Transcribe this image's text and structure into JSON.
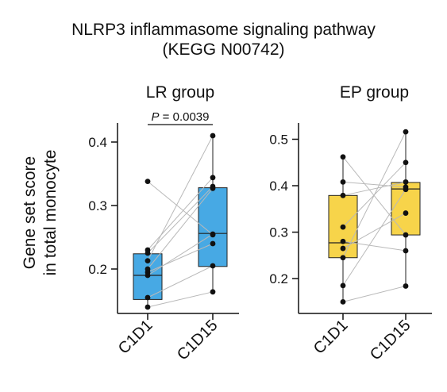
{
  "figure": {
    "title_line1": "NLRP3 inflammasome signaling pathway",
    "title_line2": "(KEGG N00742)",
    "ylabel_line1": "Gene set score",
    "ylabel_line2": "in total monocyte"
  },
  "chart_data": [
    {
      "type": "box",
      "title": "LR group",
      "categories": [
        "C1D1",
        "C1D15"
      ],
      "ylabel": "Gene set score in total monocyte",
      "ylim": [
        0.13,
        0.43
      ],
      "yticks": [
        0.2,
        0.3,
        0.4
      ],
      "ytick_labels": [
        "0.2",
        "0.3",
        "0.4"
      ],
      "box_color": "#47a9e4",
      "boxes": [
        {
          "category": "C1D1",
          "q1": 0.152,
          "median": 0.19,
          "q3": 0.224,
          "whisker_low": 0.14,
          "whisker_high": 0.233
        },
        {
          "category": "C1D15",
          "q1": 0.204,
          "median": 0.256,
          "q3": 0.328,
          "whisker_low": 0.164,
          "whisker_high": 0.41
        }
      ],
      "paired_points": [
        {
          "C1D1": 0.338,
          "C1D15": 0.254
        },
        {
          "C1D1": 0.23,
          "C1D15": 0.344
        },
        {
          "C1D1": 0.225,
          "C1D15": 0.33
        },
        {
          "C1D1": 0.213,
          "C1D15": 0.41
        },
        {
          "C1D1": 0.2,
          "C1D15": 0.327
        },
        {
          "C1D1": 0.195,
          "C1D15": 0.24
        },
        {
          "C1D1": 0.19,
          "C1D15": 0.255
        },
        {
          "C1D1": 0.155,
          "C1D15": 0.205
        },
        {
          "C1D1": 0.14,
          "C1D15": 0.164
        }
      ],
      "annotation": {
        "p_label": "P",
        "p_text": " = 0.0039"
      }
    },
    {
      "type": "box",
      "title": "EP group",
      "categories": [
        "C1D1",
        "C1D15"
      ],
      "ylim": [
        0.125,
        0.535
      ],
      "yticks": [
        0.2,
        0.3,
        0.4,
        0.5
      ],
      "ytick_labels": [
        "0.2",
        "0.3",
        "0.4",
        "0.5"
      ],
      "box_color": "#f7d44a",
      "boxes": [
        {
          "category": "C1D1",
          "q1": 0.245,
          "median": 0.277,
          "q3": 0.379,
          "whisker_low": 0.15,
          "whisker_high": 0.462
        },
        {
          "category": "C1D15",
          "q1": 0.294,
          "median": 0.393,
          "q3": 0.407,
          "whisker_low": 0.184,
          "whisker_high": 0.516
        }
      ],
      "paired_points": [
        {
          "C1D1": 0.462,
          "C1D15": 0.294
        },
        {
          "C1D1": 0.408,
          "C1D15": 0.397
        },
        {
          "C1D1": 0.379,
          "C1D15": 0.408
        },
        {
          "C1D1": 0.311,
          "C1D15": 0.45
        },
        {
          "C1D1": 0.28,
          "C1D15": 0.26
        },
        {
          "C1D1": 0.265,
          "C1D15": 0.341
        },
        {
          "C1D1": 0.245,
          "C1D15": 0.516
        },
        {
          "C1D1": 0.185,
          "C1D15": 0.392
        },
        {
          "C1D1": 0.15,
          "C1D15": 0.184
        }
      ]
    }
  ]
}
